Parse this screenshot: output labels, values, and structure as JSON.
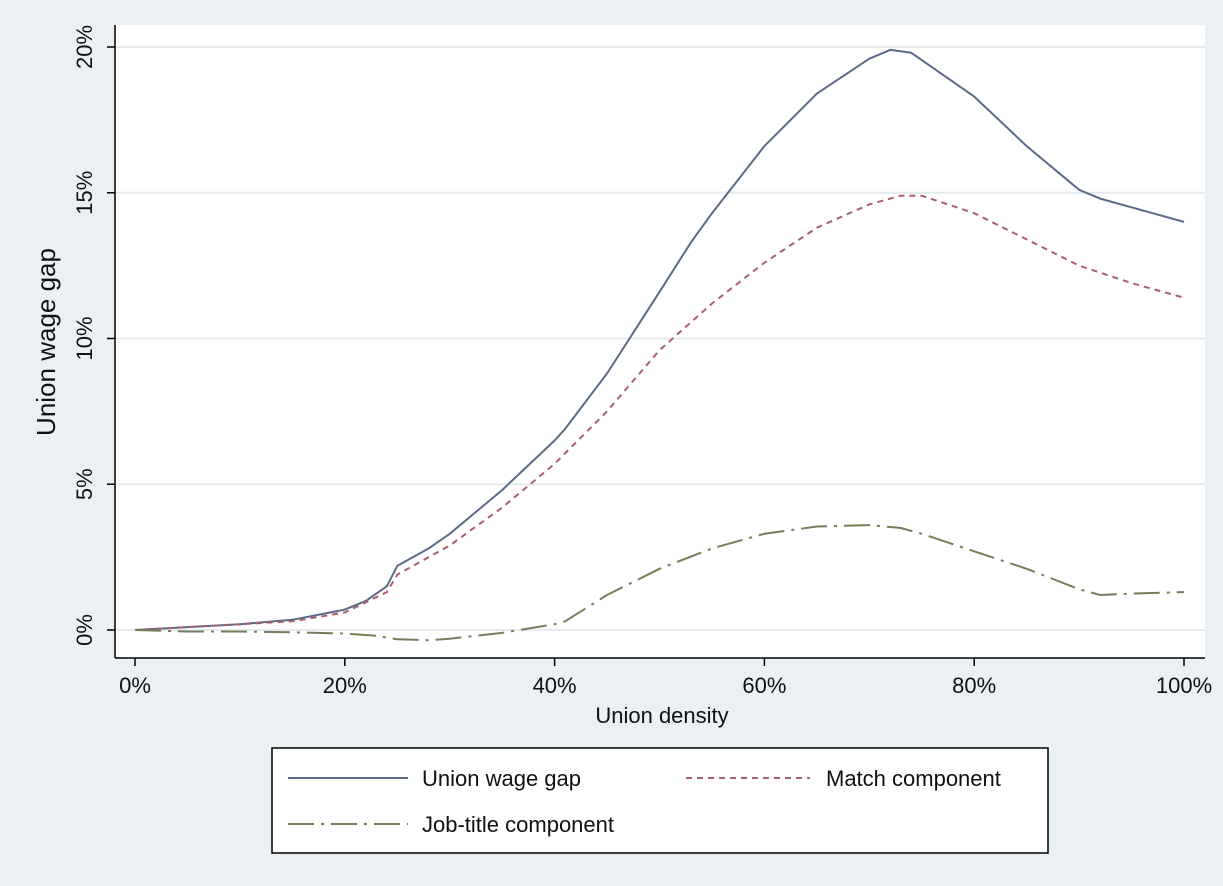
{
  "chart_data": {
    "type": "line",
    "xlabel": "Union density",
    "ylabel": "Union wage gap",
    "xlim": [
      0,
      100
    ],
    "ylim": [
      -1,
      21
    ],
    "x_ticks": [
      0,
      20,
      40,
      60,
      80,
      100
    ],
    "x_tick_labels": [
      "0%",
      "20%",
      "40%",
      "60%",
      "80%",
      "100%"
    ],
    "y_ticks": [
      0,
      5,
      10,
      15,
      20
    ],
    "y_tick_labels": [
      "0%",
      "5%",
      "10%",
      "15%",
      "20%"
    ],
    "grid": "horizontal",
    "legend_position": "bottom",
    "series": [
      {
        "name": "Union wage gap",
        "color": "#5b6a86",
        "style": "solid",
        "points": [
          [
            0,
            0
          ],
          [
            5,
            0.1
          ],
          [
            10,
            0.2
          ],
          [
            15,
            0.35
          ],
          [
            20,
            0.7
          ],
          [
            22,
            1.0
          ],
          [
            24,
            1.5
          ],
          [
            25,
            2.2
          ],
          [
            28,
            2.8
          ],
          [
            30,
            3.3
          ],
          [
            35,
            4.8
          ],
          [
            40,
            6.5
          ],
          [
            41,
            6.9
          ],
          [
            45,
            8.8
          ],
          [
            50,
            11.6
          ],
          [
            53,
            13.3
          ],
          [
            55,
            14.3
          ],
          [
            60,
            16.6
          ],
          [
            65,
            18.4
          ],
          [
            70,
            19.6
          ],
          [
            72,
            19.9
          ],
          [
            74,
            19.8
          ],
          [
            80,
            18.3
          ],
          [
            85,
            16.6
          ],
          [
            90,
            15.1
          ],
          [
            92,
            14.8
          ],
          [
            95,
            14.5
          ],
          [
            100,
            14.0
          ]
        ]
      },
      {
        "name": "Match component",
        "color": "#a85f6e",
        "style": "dashed",
        "points": [
          [
            0,
            0
          ],
          [
            5,
            0.1
          ],
          [
            10,
            0.2
          ],
          [
            15,
            0.3
          ],
          [
            20,
            0.6
          ],
          [
            24,
            1.3
          ],
          [
            25,
            1.9
          ],
          [
            30,
            2.9
          ],
          [
            35,
            4.2
          ],
          [
            40,
            5.7
          ],
          [
            45,
            7.5
          ],
          [
            50,
            9.6
          ],
          [
            55,
            11.2
          ],
          [
            60,
            12.6
          ],
          [
            65,
            13.8
          ],
          [
            70,
            14.6
          ],
          [
            73,
            14.9
          ],
          [
            75,
            14.9
          ],
          [
            80,
            14.3
          ],
          [
            85,
            13.4
          ],
          [
            90,
            12.5
          ],
          [
            95,
            11.9
          ],
          [
            100,
            11.4
          ]
        ]
      },
      {
        "name": "Job-title component",
        "color": "#767d5b",
        "style": "dashdot",
        "points": [
          [
            0,
            0
          ],
          [
            5,
            -0.05
          ],
          [
            10,
            -0.05
          ],
          [
            15,
            -0.08
          ],
          [
            20,
            -0.12
          ],
          [
            23,
            -0.2
          ],
          [
            25,
            -0.32
          ],
          [
            28,
            -0.35
          ],
          [
            30,
            -0.3
          ],
          [
            35,
            -0.1
          ],
          [
            40,
            0.2
          ],
          [
            41,
            0.3
          ],
          [
            45,
            1.2
          ],
          [
            50,
            2.1
          ],
          [
            55,
            2.8
          ],
          [
            60,
            3.3
          ],
          [
            65,
            3.55
          ],
          [
            70,
            3.6
          ],
          [
            73,
            3.5
          ],
          [
            75,
            3.3
          ],
          [
            80,
            2.7
          ],
          [
            85,
            2.1
          ],
          [
            90,
            1.4
          ],
          [
            92,
            1.2
          ],
          [
            95,
            1.25
          ],
          [
            100,
            1.3
          ]
        ]
      }
    ]
  }
}
